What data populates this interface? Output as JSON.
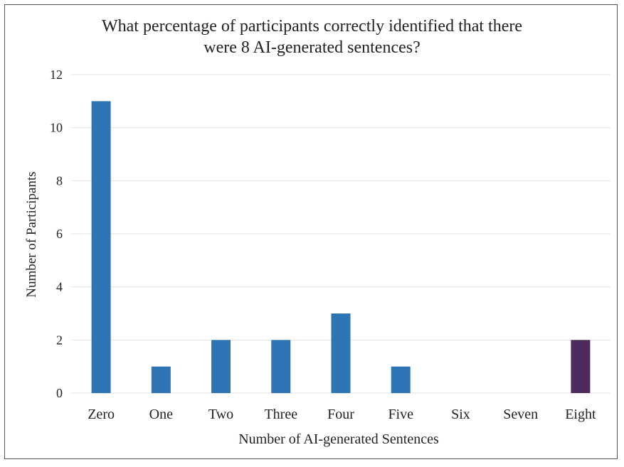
{
  "chart_data": {
    "type": "bar",
    "title_lines": [
      "What percentage of participants correctly identified that there",
      "were 8 AI-generated sentences?"
    ],
    "categories": [
      "Zero",
      "One",
      "Two",
      "Three",
      "Four",
      "Five",
      "Six",
      "Seven",
      "Eight"
    ],
    "values": [
      11,
      1,
      2,
      2,
      3,
      1,
      0,
      0,
      2
    ],
    "bar_colors": [
      "#2e75b6",
      "#2e75b6",
      "#2e75b6",
      "#2e75b6",
      "#2e75b6",
      "#2e75b6",
      "#2e75b6",
      "#2e75b6",
      "#4e2a5e"
    ],
    "xlabel": "Number of AI-generated Sentences",
    "ylabel": "Number of Participants",
    "ylim": [
      0,
      12
    ],
    "yticks": [
      0,
      2,
      4,
      6,
      8,
      10,
      12
    ],
    "grid": true,
    "legend": "none"
  }
}
